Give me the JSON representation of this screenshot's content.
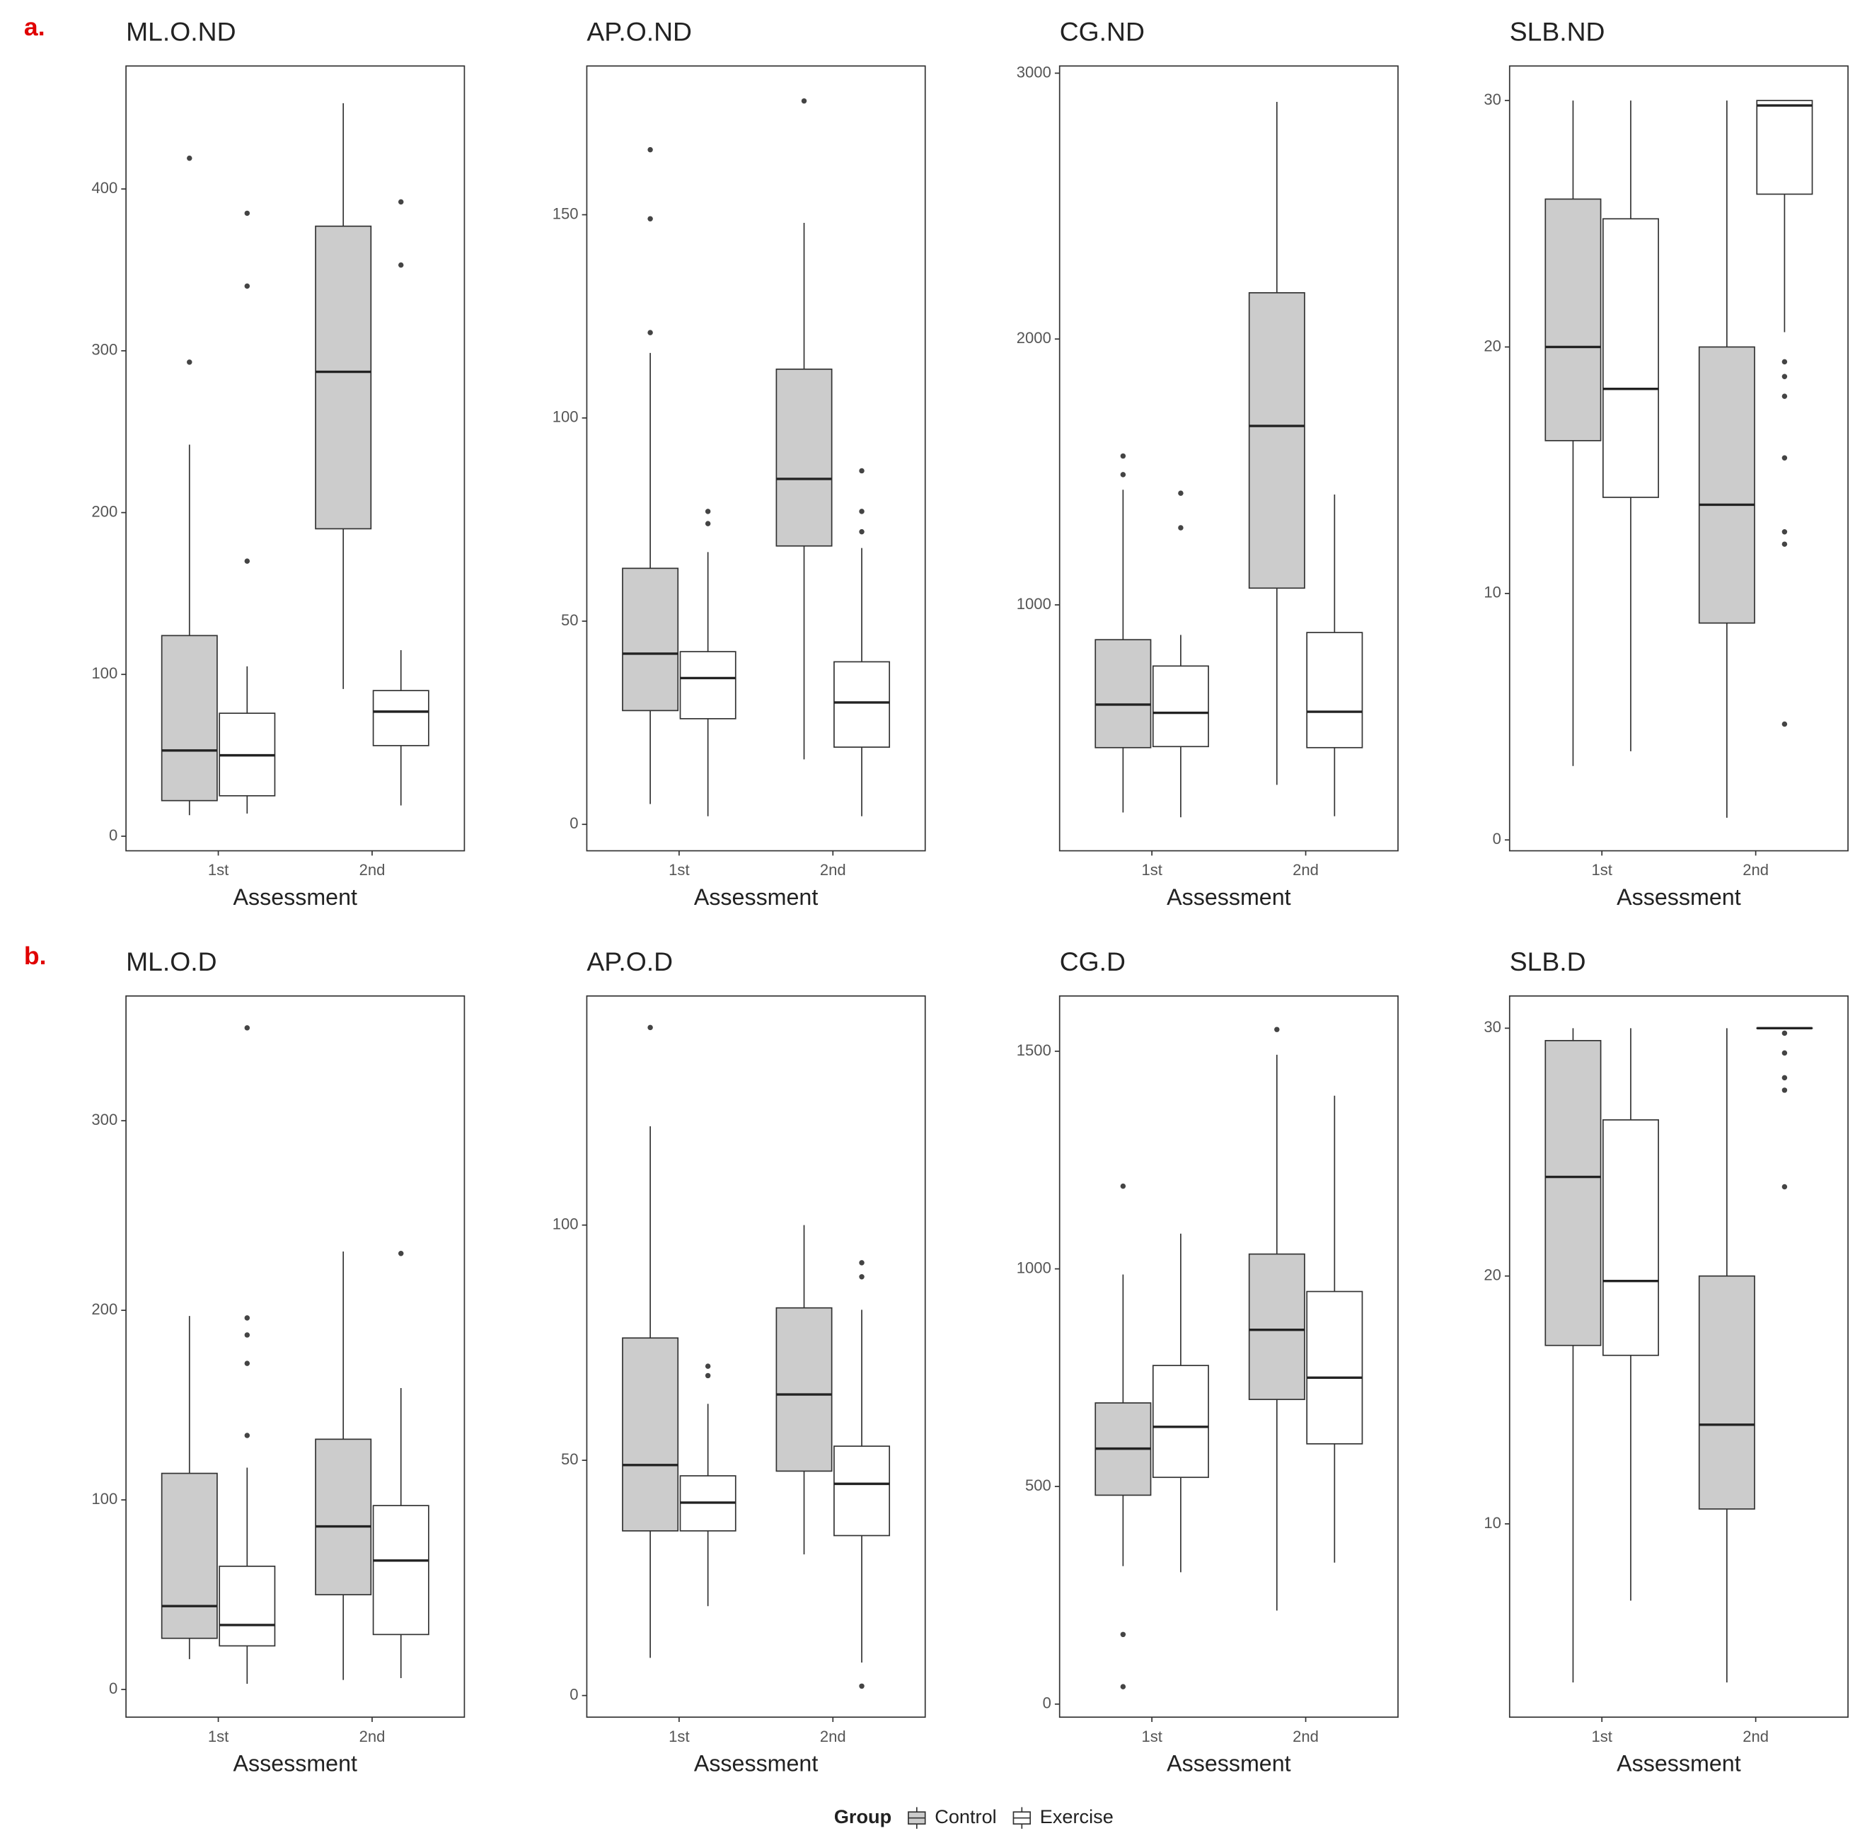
{
  "panel_labels": [
    "a.",
    "b."
  ],
  "legend_title": "Group",
  "chart_data": [
    {
      "type": "box",
      "title": "ML.O.ND",
      "x_label": "Assessment",
      "categories": [
        "1st",
        "2nd"
      ],
      "ylim": [
        -9,
        476
      ],
      "yticks": [
        0,
        100,
        200,
        300,
        400
      ],
      "series": [
        {
          "name": "Control",
          "color": "#cccccc",
          "boxes": [
            {
              "low": 13,
              "q1": 22,
              "median": 53,
              "q3": 124,
              "high": 242,
              "outliers": [
                293,
                419
              ]
            },
            {
              "low": 91,
              "q1": 190,
              "median": 287,
              "q3": 377,
              "high": 453,
              "outliers": []
            }
          ]
        },
        {
          "name": "Exercise",
          "color": "#ffffff",
          "boxes": [
            {
              "low": 14,
              "q1": 25,
              "median": 50,
              "q3": 76,
              "high": 105,
              "outliers": [
                170,
                340,
                385
              ]
            },
            {
              "low": 19,
              "q1": 56,
              "median": 77,
              "q3": 90,
              "high": 115,
              "outliers": [
                353,
                392
              ]
            }
          ]
        }
      ]
    },
    {
      "type": "box",
      "title": "AP.O.ND",
      "x_label": "Assessment",
      "categories": [
        "1st",
        "2nd"
      ],
      "ylim": [
        -6.5,
        186.6
      ],
      "yticks": [
        0,
        50,
        100,
        150
      ],
      "series": [
        {
          "name": "Control",
          "color": "#cccccc",
          "boxes": [
            {
              "low": 5,
              "q1": 28,
              "median": 42,
              "q3": 63,
              "high": 116,
              "outliers": [
                121,
                149,
                166
              ]
            },
            {
              "low": 16,
              "q1": 68.5,
              "median": 85,
              "q3": 112,
              "high": 148,
              "outliers": [
                178
              ]
            }
          ]
        },
        {
          "name": "Exercise",
          "color": "#ffffff",
          "boxes": [
            {
              "low": 2,
              "q1": 26,
              "median": 36,
              "q3": 42.5,
              "high": 67,
              "outliers": [
                74,
                77
              ]
            },
            {
              "low": 2,
              "q1": 19,
              "median": 30,
              "q3": 40,
              "high": 68,
              "outliers": [
                72,
                77,
                87
              ]
            }
          ]
        }
      ]
    },
    {
      "type": "box",
      "title": "CG.ND",
      "x_label": "Assessment",
      "categories": [
        "1st",
        "2nd"
      ],
      "ylim": [
        75,
        3027
      ],
      "yticks": [
        1000,
        2000,
        3000
      ],
      "series": [
        {
          "name": "Control",
          "color": "#cccccc",
          "boxes": [
            {
              "low": 219,
              "q1": 463,
              "median": 625,
              "q3": 869,
              "high": 1433,
              "outliers": [
                1490,
                1560
              ]
            },
            {
              "low": 323,
              "q1": 1063,
              "median": 1673,
              "q3": 2174,
              "high": 2892,
              "outliers": []
            }
          ]
        },
        {
          "name": "Exercise",
          "color": "#ffffff",
          "boxes": [
            {
              "low": 201,
              "q1": 467,
              "median": 594,
              "q3": 770,
              "high": 887,
              "outliers": [
                1290,
                1420
              ]
            },
            {
              "low": 205,
              "q1": 463,
              "median": 598,
              "q3": 896,
              "high": 1415,
              "outliers": []
            }
          ]
        }
      ]
    },
    {
      "type": "box",
      "title": "SLB.ND",
      "x_label": "Assessment",
      "categories": [
        "1st",
        "2nd"
      ],
      "ylim": [
        -0.44,
        31.4
      ],
      "yticks": [
        0,
        10,
        20,
        30
      ],
      "series": [
        {
          "name": "Control",
          "color": "#cccccc",
          "boxes": [
            {
              "low": 3,
              "q1": 16.2,
              "median": 20,
              "q3": 26,
              "high": 30,
              "outliers": []
            },
            {
              "low": 0.9,
              "q1": 8.8,
              "median": 13.6,
              "q3": 20,
              "high": 30,
              "outliers": []
            }
          ]
        },
        {
          "name": "Exercise",
          "color": "#ffffff",
          "boxes": [
            {
              "low": 3.6,
              "q1": 13.9,
              "median": 18.3,
              "q3": 25.2,
              "high": 30,
              "outliers": []
            },
            {
              "low": 20.6,
              "q1": 26.2,
              "median": 29.8,
              "q3": 30,
              "high": 30,
              "outliers": [
                4.7,
                12,
                12.5,
                15.5,
                18,
                18.8,
                19.4
              ]
            }
          ]
        }
      ]
    },
    {
      "type": "box",
      "title": "ML.O.D",
      "x_label": "Assessment",
      "categories": [
        "1st",
        "2nd"
      ],
      "ylim": [
        -14.6,
        365.8
      ],
      "yticks": [
        0,
        100,
        200,
        300
      ],
      "series": [
        {
          "name": "Control",
          "color": "#cccccc",
          "boxes": [
            {
              "low": 16,
              "q1": 27,
              "median": 44,
              "q3": 114,
              "high": 197,
              "outliers": []
            },
            {
              "low": 5,
              "q1": 50,
              "median": 86,
              "q3": 132,
              "high": 231,
              "outliers": []
            }
          ]
        },
        {
          "name": "Exercise",
          "color": "#ffffff",
          "boxes": [
            {
              "low": 3,
              "q1": 23,
              "median": 34,
              "q3": 65,
              "high": 117,
              "outliers": [
                134,
                172,
                187,
                196,
                349
              ]
            },
            {
              "low": 6,
              "q1": 29,
              "median": 68,
              "q3": 97,
              "high": 159,
              "outliers": [
                230
              ]
            }
          ]
        }
      ]
    },
    {
      "type": "box",
      "title": "AP.O.D",
      "x_label": "Assessment",
      "categories": [
        "1st",
        "2nd"
      ],
      "ylim": [
        -4.6,
        148.7
      ],
      "yticks": [
        0,
        50,
        100
      ],
      "series": [
        {
          "name": "Control",
          "color": "#cccccc",
          "boxes": [
            {
              "low": 8,
              "q1": 35,
              "median": 49,
              "q3": 76,
              "high": 121,
              "outliers": [
                142
              ]
            },
            {
              "low": 30,
              "q1": 47.7,
              "median": 64,
              "q3": 82.4,
              "high": 100,
              "outliers": []
            }
          ]
        },
        {
          "name": "Exercise",
          "color": "#ffffff",
          "boxes": [
            {
              "low": 19,
              "q1": 35,
              "median": 41,
              "q3": 46.7,
              "high": 62,
              "outliers": [
                68,
                70
              ]
            },
            {
              "low": 7,
              "q1": 34,
              "median": 45,
              "q3": 53,
              "high": 82,
              "outliers": [
                2,
                89,
                92
              ]
            }
          ]
        }
      ]
    },
    {
      "type": "box",
      "title": "CG.D",
      "x_label": "Assessment",
      "categories": [
        "1st",
        "2nd"
      ],
      "ylim": [
        -30,
        1627
      ],
      "yticks": [
        0,
        500,
        1000,
        1500
      ],
      "series": [
        {
          "name": "Control",
          "color": "#cccccc",
          "boxes": [
            {
              "low": 317,
              "q1": 480,
              "median": 587,
              "q3": 692,
              "high": 987,
              "outliers": [
                40,
                160,
                1190
              ]
            },
            {
              "low": 215,
              "q1": 700,
              "median": 860,
              "q3": 1034,
              "high": 1492,
              "outliers": [
                1550
              ]
            }
          ]
        },
        {
          "name": "Exercise",
          "color": "#ffffff",
          "boxes": [
            {
              "low": 303,
              "q1": 521,
              "median": 637,
              "q3": 778,
              "high": 1081,
              "outliers": []
            },
            {
              "low": 325,
              "q1": 598,
              "median": 750,
              "q3": 948,
              "high": 1398,
              "outliers": []
            }
          ]
        }
      ]
    },
    {
      "type": "box",
      "title": "SLB.D",
      "x_label": "Assessment",
      "categories": [
        "1st",
        "2nd"
      ],
      "ylim": [
        2.2,
        31.3
      ],
      "yticks": [
        10,
        20,
        30
      ],
      "series": [
        {
          "name": "Control",
          "color": "#cccccc",
          "boxes": [
            {
              "low": 3.6,
              "q1": 17.2,
              "median": 24,
              "q3": 29.5,
              "high": 30,
              "outliers": []
            },
            {
              "low": 3.6,
              "q1": 10.6,
              "median": 14,
              "q3": 20,
              "high": 30,
              "outliers": []
            }
          ]
        },
        {
          "name": "Exercise",
          "color": "#ffffff",
          "boxes": [
            {
              "low": 6.9,
              "q1": 16.8,
              "median": 19.8,
              "q3": 26.3,
              "high": 30,
              "outliers": []
            },
            {
              "low": 30,
              "q1": 30,
              "median": 30,
              "q3": 30,
              "high": 30,
              "outliers": [
                23.6,
                27.5,
                28,
                29,
                29.8
              ]
            }
          ]
        }
      ]
    }
  ]
}
